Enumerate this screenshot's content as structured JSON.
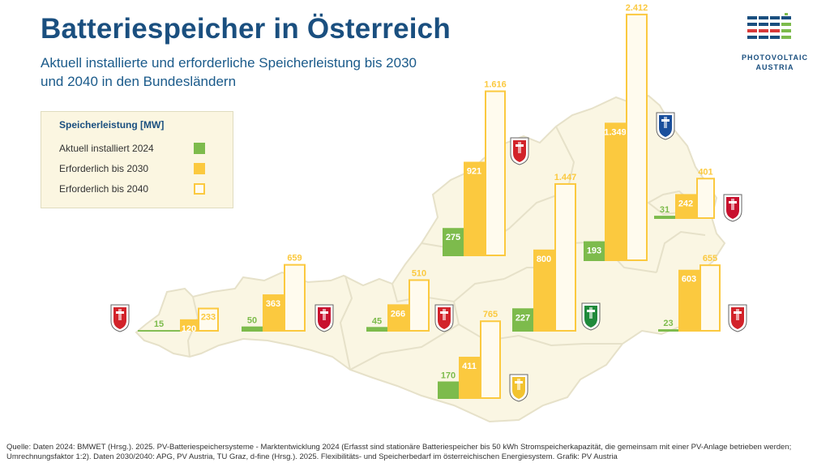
{
  "header": {
    "title": "Batteriespeicher in Österreich",
    "subtitle_line1": "Aktuell installierte und erforderliche Speicherleistung bis 2030",
    "subtitle_line2": "und 2040 in den Bundesländern"
  },
  "logo": {
    "line1": "PHOTOVOLTAIC",
    "line2": "AUSTRIA",
    "icon": "photovoltaic-austria-logo"
  },
  "legend": {
    "title": "Speicherleistung [MW]",
    "items": [
      {
        "label": "Aktuell installiert 2024",
        "color": "#7dbb4c",
        "style": "filled"
      },
      {
        "label": "Erforderlich bis 2030",
        "color": "#fbc93f",
        "style": "filled"
      },
      {
        "label": "Erforderlich bis 2040",
        "color": "#fbc93f",
        "style": "outline"
      }
    ]
  },
  "colors": {
    "installed": "#7dbb4c",
    "req2030": "#fbc93f",
    "req2040_fill": "#fffbee",
    "req2040_border": "#fbc93f",
    "map": "#faf6e3",
    "map_border": "#e6e1c9",
    "text_dark": "#1a4f7f"
  },
  "chart_data": {
    "type": "bar",
    "unit": "MW",
    "series": [
      {
        "name": "Aktuell installiert 2024",
        "values": [
          15,
          50,
          45,
          275,
          227,
          170,
          193,
          31,
          23
        ]
      },
      {
        "name": "Erforderlich bis 2030",
        "values": [
          120,
          363,
          266,
          921,
          800,
          411,
          1349,
          242,
          603
        ]
      },
      {
        "name": "Erforderlich bis 2040",
        "values": [
          233,
          659,
          510,
          1616,
          1447,
          765,
          2412,
          401,
          655
        ]
      }
    ],
    "labels": [
      [
        "15",
        "120",
        "233"
      ],
      [
        "50",
        "363",
        "659"
      ],
      [
        "45",
        "266",
        "510"
      ],
      [
        "275",
        "921",
        "1.616"
      ],
      [
        "227",
        "800",
        "1.447"
      ],
      [
        "170",
        "411",
        "765"
      ],
      [
        "193",
        "1.349",
        "2.412"
      ],
      [
        "31",
        "242",
        "401"
      ],
      [
        "23",
        "603",
        "655"
      ]
    ],
    "crests": [
      "vorarlberg-crest-icon",
      "tirol-crest-icon",
      "salzburg-crest-icon",
      "oberoesterreich-crest-icon",
      "steiermark-crest-icon",
      "kaernten-crest-icon",
      "niederoesterreich-crest-icon",
      "wien-crest-icon",
      "burgenland-crest-icon"
    ]
  },
  "source": "Quelle: Daten 2024: BMWET (Hrsg.). 2025. PV-Batteriespeichersysteme - Marktentwicklung 2024 (Erfasst sind stationäre Batteriespeicher bis 50 kWh Stromspeicherkapazität, die gemeinsam mit einer PV-Anlage betrieben werden; Umrechnungsfaktor 1:2). Daten 2030/2040: APG, PV Austria, TU Graz, d-fine (Hrsg.). 2025. Flexibilitäts- und Speicherbedarf im österreichischen Energiesystem. Grafik: PV Austria"
}
